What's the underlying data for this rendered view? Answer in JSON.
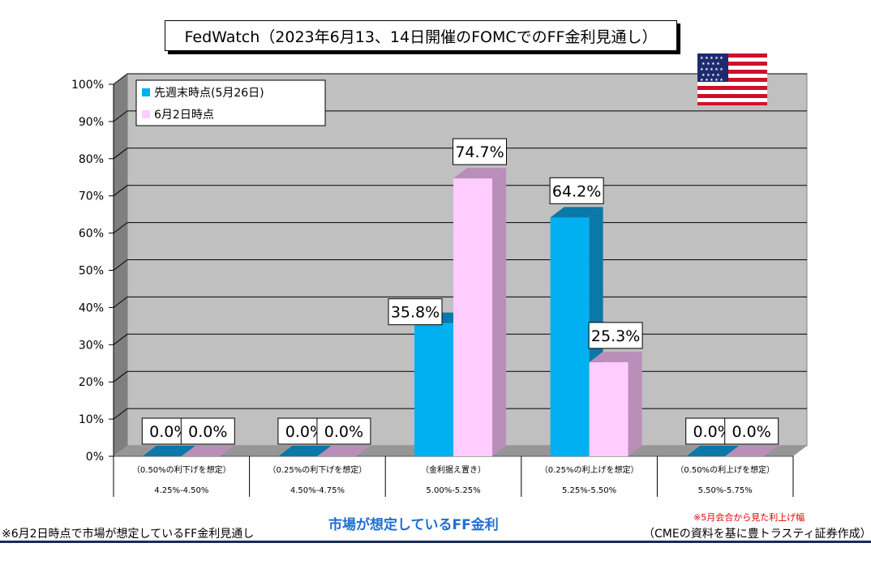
{
  "title": "FedWatch（2023年6月13、14日開催のFOMCでのFF金利見通し）",
  "chart_data": {
    "type": "bar",
    "categories": [
      "4.25%-4.50%",
      "4.50%-4.75%",
      "5.00%-5.25%",
      "5.25%-5.50%",
      "5.50%-5.75%"
    ],
    "sublabels": [
      "（0.50%の利下げを想定）",
      "（0.25%の利下げを想定）",
      "（金利据え置き）",
      "（0.25%の利上げを想定）",
      "（0.50%の利上げを想定）"
    ],
    "series": [
      {
        "name": "先週末時点(5月26日)",
        "values": [
          0.0,
          0.0,
          35.8,
          64.2,
          0.0
        ],
        "color": "#00b0f0",
        "side_color": "#0a78a8"
      },
      {
        "name": "6月2日時点",
        "values": [
          0.0,
          0.0,
          74.7,
          25.3,
          0.0
        ],
        "color": "#ffccff",
        "side_color": "#b98fb9"
      }
    ],
    "data_labels": [
      [
        "0.0%",
        "0.0%",
        "35.8%",
        "64.2%",
        "0.0%"
      ],
      [
        "0.0%",
        "0.0%",
        "74.7%",
        "25.3%",
        "0.0%"
      ]
    ],
    "yticks": [
      "0%",
      "10%",
      "20%",
      "30%",
      "40%",
      "50%",
      "60%",
      "70%",
      "80%",
      "90%",
      "100%"
    ],
    "ylim": [
      0,
      100
    ],
    "grid": true,
    "legend_position": "top-left",
    "xlabel": "市場が想定しているFF金利",
    "ylabel": ""
  },
  "footer": {
    "left_note": "※6月2日時点で市場が想定しているFF金利見通し",
    "red_note": "※5月会合から見た利上げ幅",
    "source": "（CMEの資料を基に豊トラスティ証券作成）"
  },
  "flag": {
    "name": "us-flag-icon"
  }
}
